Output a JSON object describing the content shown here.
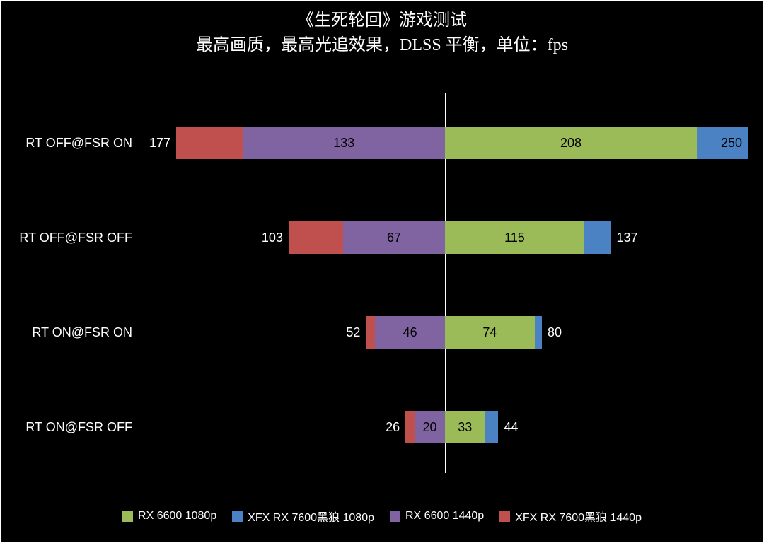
{
  "chart_data": {
    "type": "bar",
    "variant": "horizontal-diverging-overlap",
    "title": "《生死轮回》游戏测试",
    "subtitle": "最高画质，最高光追效果，DLSS 平衡，单位：fps",
    "unit": "fps",
    "background": "#000000",
    "text_color": "#ffffff",
    "legend_position": "bottom",
    "categories": [
      "RT OFF@FSR ON",
      "RT OFF@FSR OFF",
      "RT ON@FSR ON",
      "RT ON@FSR OFF"
    ],
    "series": [
      {
        "name": "RX 6600 1080p",
        "color": "#9bbb59",
        "side": "right",
        "layer": "inner",
        "values": [
          208,
          115,
          74,
          33
        ]
      },
      {
        "name": "XFX RX 7600黑狼 1080p",
        "color": "#4a82c4",
        "side": "right",
        "layer": "outer",
        "values": [
          250,
          137,
          80,
          44
        ]
      },
      {
        "name": "RX 6600 1440p",
        "color": "#8064a2",
        "side": "left",
        "layer": "inner",
        "values": [
          133,
          67,
          46,
          20
        ]
      },
      {
        "name": "XFX RX 7600黑狼 1440p",
        "color": "#c0504d",
        "side": "left",
        "layer": "outer",
        "values": [
          177,
          103,
          52,
          26
        ]
      }
    ]
  }
}
